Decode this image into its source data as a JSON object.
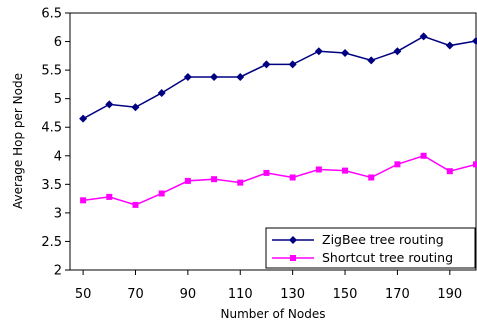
{
  "chart_data": {
    "type": "line",
    "title": "",
    "xlabel": "Number of Nodes",
    "ylabel": "Average Hop per Node",
    "xlim": [
      45,
      200
    ],
    "ylim": [
      2,
      6.5
    ],
    "xticks": [
      50,
      70,
      90,
      110,
      130,
      150,
      170,
      190
    ],
    "xtick_labels": [
      "50",
      "70",
      "90",
      "110",
      "130",
      "150",
      "170",
      "190"
    ],
    "yticks": [
      2,
      2.5,
      3,
      3.5,
      4,
      4.5,
      5,
      5.5,
      6,
      6.5
    ],
    "ytick_labels": [
      "2",
      "2.5",
      "3",
      "3.5",
      "4",
      "4.5",
      "5",
      "5.5",
      "6",
      "6.5"
    ],
    "grid": false,
    "legend_position": "bottom-right",
    "x": [
      50,
      60,
      70,
      80,
      90,
      100,
      110,
      120,
      130,
      140,
      150,
      160,
      170,
      180,
      190,
      200
    ],
    "series": [
      {
        "name": "ZigBee tree routing",
        "marker": "diamond",
        "color": "#000080",
        "values": [
          4.65,
          4.9,
          4.85,
          5.1,
          5.38,
          5.38,
          5.38,
          5.6,
          5.6,
          5.83,
          5.8,
          5.67,
          5.83,
          6.09,
          5.93,
          6.01
        ]
      },
      {
        "name": "Shortcut tree routing",
        "marker": "square",
        "color": "#ff00ff",
        "values": [
          3.22,
          3.28,
          3.14,
          3.34,
          3.56,
          3.59,
          3.53,
          3.7,
          3.62,
          3.76,
          3.74,
          3.62,
          3.85,
          4.0,
          3.73,
          3.85
        ]
      }
    ]
  }
}
